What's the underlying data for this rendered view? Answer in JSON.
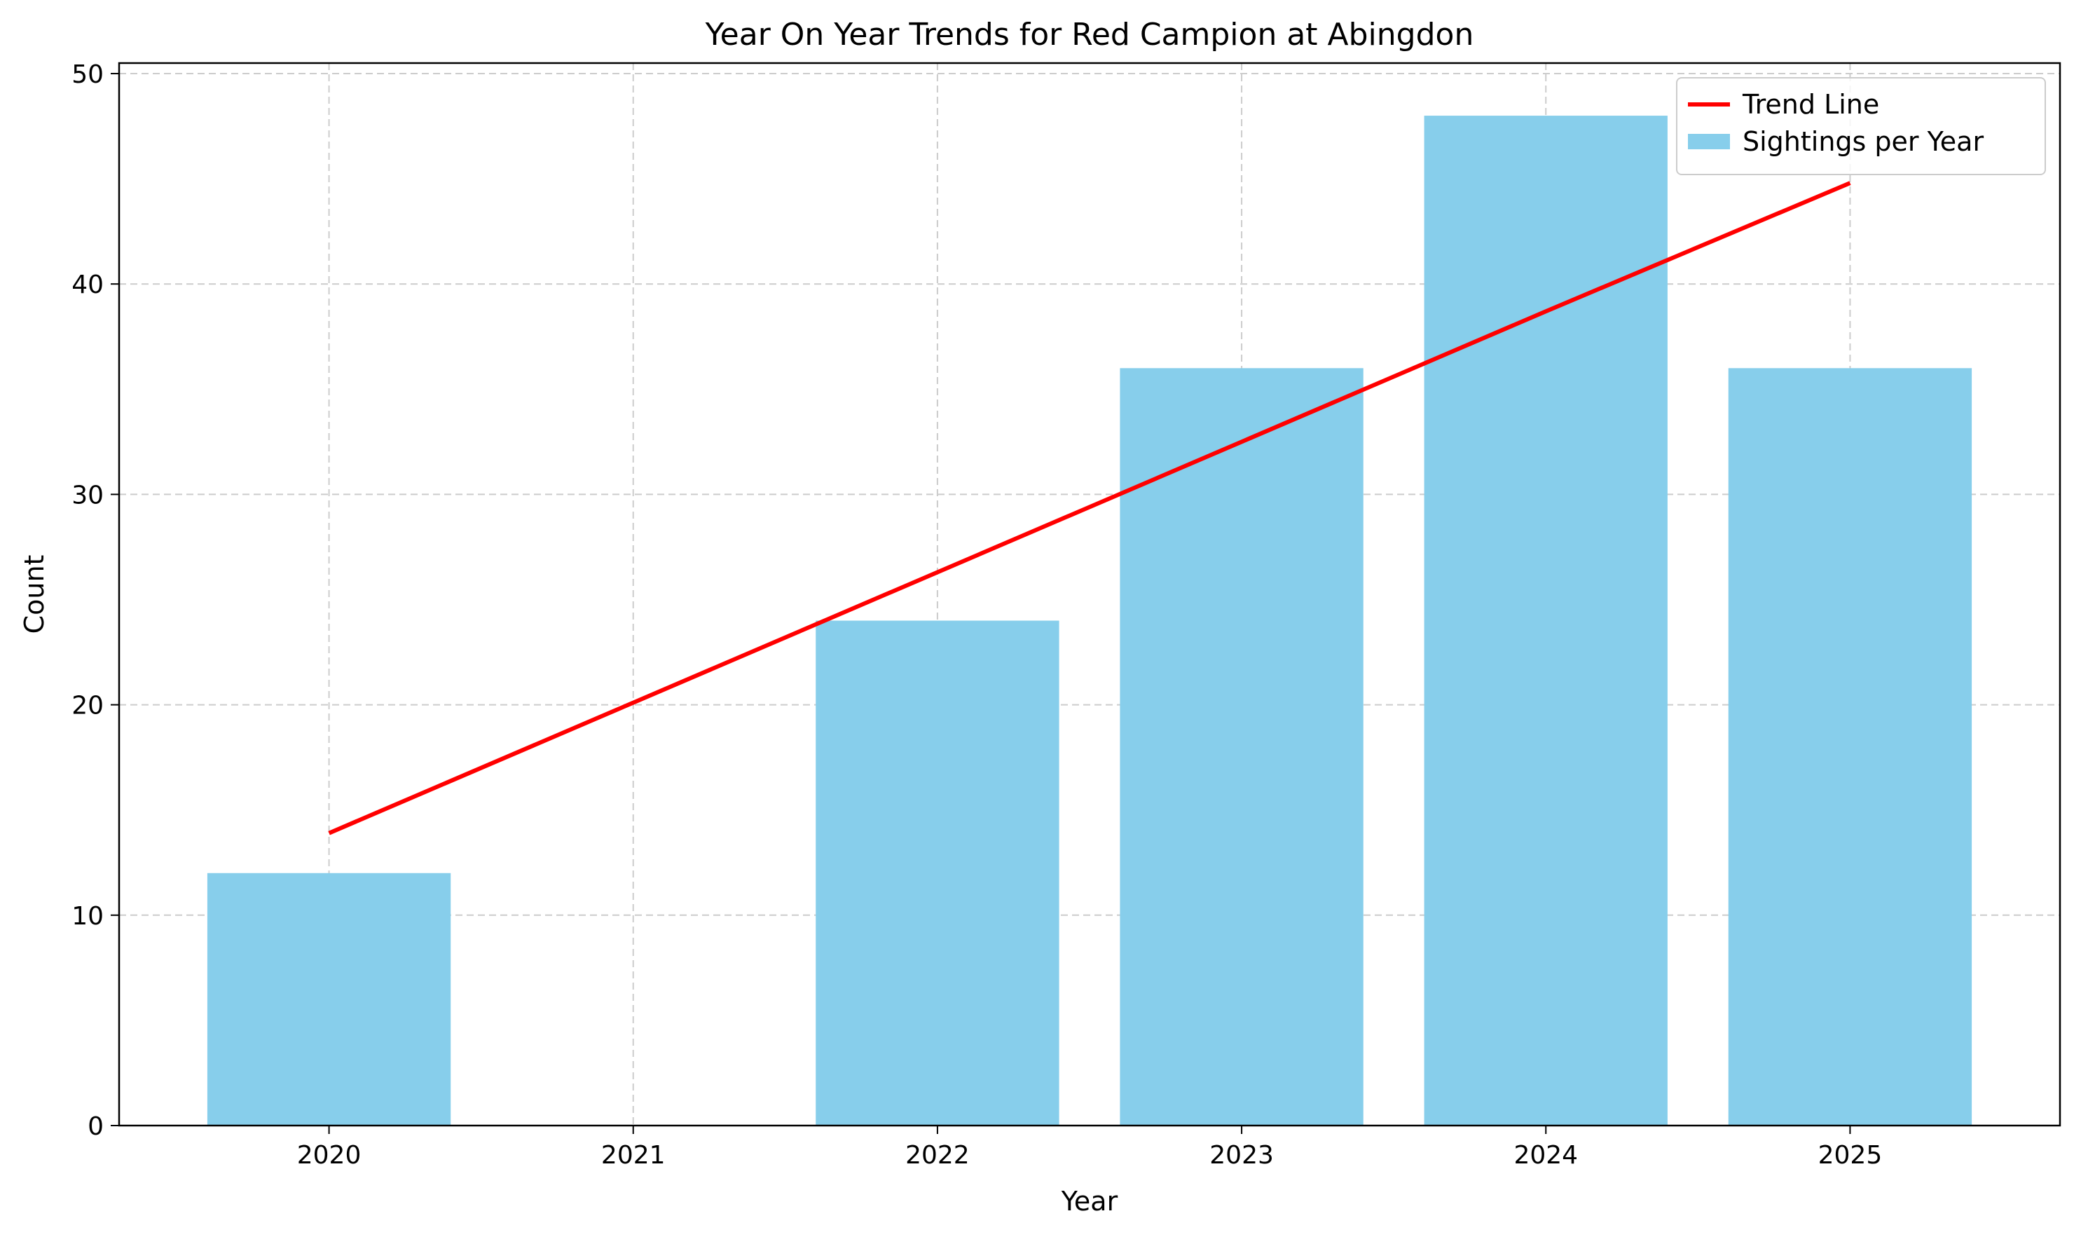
{
  "chart_data": {
    "type": "bar",
    "title": "Year On Year Trends for Red Campion at Abingdon",
    "xlabel": "Year",
    "ylabel": "Count",
    "categories": [
      "2020",
      "2021",
      "2022",
      "2023",
      "2024",
      "2025"
    ],
    "ylim": [
      0,
      50.5
    ],
    "yticks": [
      0,
      10,
      20,
      30,
      40,
      50
    ],
    "grid": true,
    "legend_position": "top-right",
    "series": [
      {
        "name": "Sightings per Year",
        "type": "bar",
        "color": "#87CEEB",
        "values": [
          12,
          0,
          24,
          36,
          48,
          36
        ]
      },
      {
        "name": "Trend Line",
        "type": "line",
        "color": "#FF0000",
        "values": [
          13.9,
          20.1,
          26.3,
          32.5,
          38.7,
          44.8
        ]
      }
    ]
  }
}
